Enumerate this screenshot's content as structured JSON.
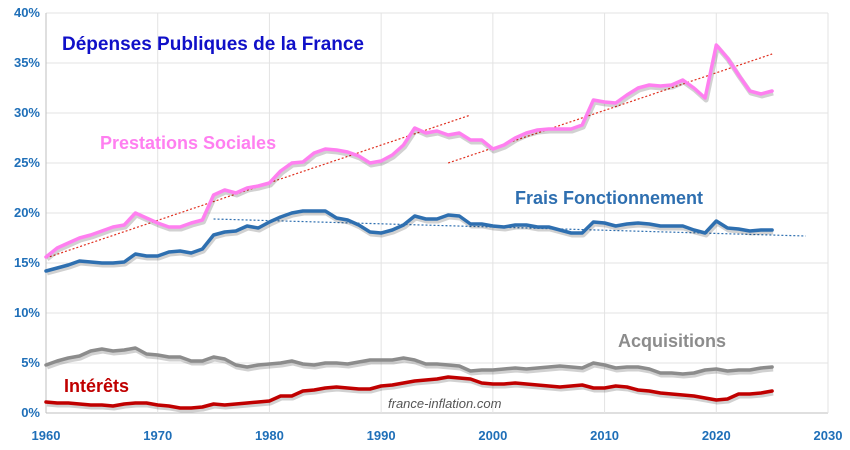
{
  "chart_data": {
    "type": "line",
    "title": "Dépenses Publiques de la France",
    "watermark": "france-inflation.com",
    "xlim": [
      1960,
      2030
    ],
    "ylim": [
      0,
      40
    ],
    "x_ticks": [
      "1960",
      "1970",
      "1980",
      "1990",
      "2000",
      "2010",
      "2020",
      "2030"
    ],
    "y_ticks": [
      "0%",
      "5%",
      "10%",
      "15%",
      "20%",
      "25%",
      "30%",
      "35%",
      "40%"
    ],
    "grid": true,
    "colors": {
      "prestations": "#ff7ff0",
      "frais": "#2e6fb0",
      "acquisitions": "#8c8c8c",
      "interets": "#c00000",
      "title": "#1010c8",
      "trend_red": "#e03020",
      "trend_blue": "#2e6fb0",
      "axis_text": "#1f6fb8"
    },
    "series": [
      {
        "key": "prestations",
        "name": "Prestations Sociales",
        "x": [
          1960,
          1961,
          1962,
          1963,
          1964,
          1965,
          1966,
          1967,
          1968,
          1969,
          1970,
          1971,
          1972,
          1973,
          1974,
          1975,
          1976,
          1977,
          1978,
          1979,
          1980,
          1981,
          1982,
          1983,
          1984,
          1985,
          1986,
          1987,
          1988,
          1989,
          1990,
          1991,
          1992,
          1993,
          1994,
          1995,
          1996,
          1997,
          1998,
          1999,
          2000,
          2001,
          2002,
          2003,
          2004,
          2005,
          2006,
          2007,
          2008,
          2009,
          2010,
          2011,
          2012,
          2013,
          2014,
          2015,
          2016,
          2017,
          2018,
          2019,
          2020,
          2021,
          2022,
          2023,
          2024,
          2025
        ],
        "values": [
          15.6,
          16.5,
          17.0,
          17.5,
          17.8,
          18.2,
          18.6,
          18.8,
          20.0,
          19.5,
          19.0,
          18.6,
          18.6,
          19.0,
          19.3,
          21.8,
          22.3,
          22.0,
          22.5,
          22.7,
          23.0,
          24.2,
          25.0,
          25.1,
          26.0,
          26.4,
          26.3,
          26.1,
          25.7,
          25.0,
          25.2,
          25.8,
          26.8,
          28.5,
          28.0,
          28.2,
          27.8,
          28.0,
          27.3,
          27.3,
          26.4,
          26.8,
          27.5,
          28.0,
          28.3,
          28.4,
          28.4,
          28.4,
          28.8,
          31.3,
          31.1,
          31.0,
          31.8,
          32.5,
          32.8,
          32.7,
          32.8,
          33.3,
          32.5,
          31.5,
          36.8,
          35.5,
          33.8,
          32.2,
          31.9,
          32.2
        ]
      },
      {
        "key": "frais",
        "name": "Frais Fonctionnement",
        "x": [
          1960,
          1961,
          1962,
          1963,
          1964,
          1965,
          1966,
          1967,
          1968,
          1969,
          1970,
          1971,
          1972,
          1973,
          1974,
          1975,
          1976,
          1977,
          1978,
          1979,
          1980,
          1981,
          1982,
          1983,
          1984,
          1985,
          1986,
          1987,
          1988,
          1989,
          1990,
          1991,
          1992,
          1993,
          1994,
          1995,
          1996,
          1997,
          1998,
          1999,
          2000,
          2001,
          2002,
          2003,
          2004,
          2005,
          2006,
          2007,
          2008,
          2009,
          2010,
          2011,
          2012,
          2013,
          2014,
          2015,
          2016,
          2017,
          2018,
          2019,
          2020,
          2021,
          2022,
          2023,
          2024,
          2025
        ],
        "values": [
          14.2,
          14.5,
          14.8,
          15.2,
          15.1,
          15.0,
          15.0,
          15.1,
          15.9,
          15.7,
          15.7,
          16.1,
          16.2,
          16.0,
          16.4,
          17.8,
          18.1,
          18.2,
          18.7,
          18.5,
          19.1,
          19.6,
          20.0,
          20.2,
          20.2,
          20.2,
          19.5,
          19.3,
          18.8,
          18.1,
          18.0,
          18.3,
          18.8,
          19.7,
          19.4,
          19.4,
          19.8,
          19.7,
          18.9,
          18.9,
          18.7,
          18.6,
          18.8,
          18.8,
          18.6,
          18.6,
          18.3,
          18.0,
          18.0,
          19.1,
          19.0,
          18.7,
          18.9,
          19.0,
          18.9,
          18.7,
          18.7,
          18.7,
          18.3,
          18.0,
          19.2,
          18.5,
          18.4,
          18.2,
          18.3,
          18.3
        ]
      },
      {
        "key": "acquisitions",
        "name": "Acquisitions",
        "x": [
          1960,
          1961,
          1962,
          1963,
          1964,
          1965,
          1966,
          1967,
          1968,
          1969,
          1970,
          1971,
          1972,
          1973,
          1974,
          1975,
          1976,
          1977,
          1978,
          1979,
          1980,
          1981,
          1982,
          1983,
          1984,
          1985,
          1986,
          1987,
          1988,
          1989,
          1990,
          1991,
          1992,
          1993,
          1994,
          1995,
          1996,
          1997,
          1998,
          1999,
          2000,
          2001,
          2002,
          2003,
          2004,
          2005,
          2006,
          2007,
          2008,
          2009,
          2010,
          2011,
          2012,
          2013,
          2014,
          2015,
          2016,
          2017,
          2018,
          2019,
          2020,
          2021,
          2022,
          2023,
          2024,
          2025
        ],
        "values": [
          4.8,
          5.2,
          5.5,
          5.7,
          6.2,
          6.4,
          6.2,
          6.3,
          6.5,
          5.9,
          5.8,
          5.6,
          5.6,
          5.2,
          5.2,
          5.6,
          5.4,
          4.8,
          4.6,
          4.8,
          4.9,
          5.0,
          5.2,
          4.9,
          4.8,
          5.0,
          5.0,
          4.9,
          5.1,
          5.3,
          5.3,
          5.3,
          5.5,
          5.3,
          4.9,
          4.9,
          4.8,
          4.7,
          4.2,
          4.3,
          4.3,
          4.4,
          4.5,
          4.4,
          4.5,
          4.6,
          4.7,
          4.6,
          4.5,
          5.0,
          4.8,
          4.5,
          4.6,
          4.6,
          4.4,
          4.0,
          4.0,
          3.9,
          4.0,
          4.3,
          4.4,
          4.2,
          4.3,
          4.3,
          4.5,
          4.6
        ]
      },
      {
        "key": "interets",
        "name": "Intérêts",
        "x": [
          1960,
          1961,
          1962,
          1963,
          1964,
          1965,
          1966,
          1967,
          1968,
          1969,
          1970,
          1971,
          1972,
          1973,
          1974,
          1975,
          1976,
          1977,
          1978,
          1979,
          1980,
          1981,
          1982,
          1983,
          1984,
          1985,
          1986,
          1987,
          1988,
          1989,
          1990,
          1991,
          1992,
          1993,
          1994,
          1995,
          1996,
          1997,
          1998,
          1999,
          2000,
          2001,
          2002,
          2003,
          2004,
          2005,
          2006,
          2007,
          2008,
          2009,
          2010,
          2011,
          2012,
          2013,
          2014,
          2015,
          2016,
          2017,
          2018,
          2019,
          2020,
          2021,
          2022,
          2023,
          2024,
          2025
        ],
        "values": [
          1.1,
          1.0,
          1.0,
          0.9,
          0.8,
          0.8,
          0.7,
          0.9,
          1.0,
          1.0,
          0.8,
          0.7,
          0.5,
          0.5,
          0.6,
          0.9,
          0.8,
          0.9,
          1.0,
          1.1,
          1.2,
          1.7,
          1.7,
          2.2,
          2.3,
          2.5,
          2.6,
          2.5,
          2.4,
          2.4,
          2.7,
          2.8,
          3.0,
          3.2,
          3.3,
          3.4,
          3.6,
          3.5,
          3.4,
          3.0,
          2.9,
          2.9,
          3.0,
          2.9,
          2.8,
          2.7,
          2.6,
          2.7,
          2.8,
          2.5,
          2.5,
          2.7,
          2.6,
          2.3,
          2.2,
          2.0,
          1.9,
          1.8,
          1.7,
          1.5,
          1.3,
          1.4,
          1.9,
          1.9,
          2.0,
          2.2
        ]
      }
    ],
    "trendlines": [
      {
        "series": "prestations",
        "x": [
          1960,
          1998
        ],
        "values": [
          15.5,
          29.8
        ]
      },
      {
        "series": "prestations",
        "x": [
          1996,
          2025
        ],
        "values": [
          25.0,
          35.9
        ]
      },
      {
        "series": "frais",
        "x": [
          1975,
          2028
        ],
        "values": [
          19.4,
          17.7
        ]
      }
    ]
  }
}
